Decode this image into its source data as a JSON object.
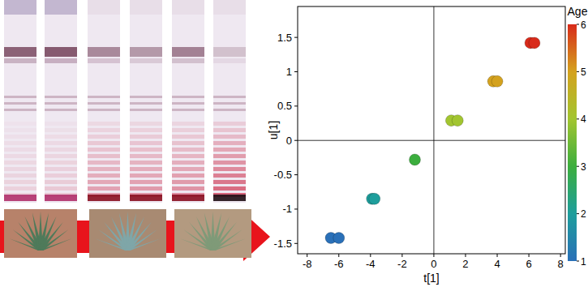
{
  "chart_data": {
    "type": "scatter",
    "x_label": "t[1]",
    "y_label": "u[1]",
    "x": [
      -6.5,
      -6.0,
      -3.9,
      -3.75,
      -1.2,
      1.1,
      1.5,
      3.75,
      4.0,
      6.1,
      6.35
    ],
    "values": [
      -1.42,
      -1.42,
      -0.85,
      -0.85,
      -0.28,
      0.29,
      0.29,
      0.86,
      0.86,
      1.42,
      1.42
    ],
    "color_values": [
      1,
      1,
      2,
      2,
      3,
      4,
      4,
      5,
      5,
      6,
      6
    ],
    "xlim": [
      -8.6,
      8.3
    ],
    "xticks": [
      -8,
      -6,
      -4,
      -2,
      0,
      2,
      4,
      6,
      8
    ],
    "ylim": [
      -1.65,
      1.95
    ],
    "yticks": [
      -1.5,
      -1,
      -0.5,
      0,
      0.5,
      1,
      1.5
    ],
    "colorbar": {
      "label": "Age",
      "lim": [
        1,
        6
      ],
      "ticks": [
        1,
        2,
        3,
        4,
        5,
        6
      ]
    }
  }
}
